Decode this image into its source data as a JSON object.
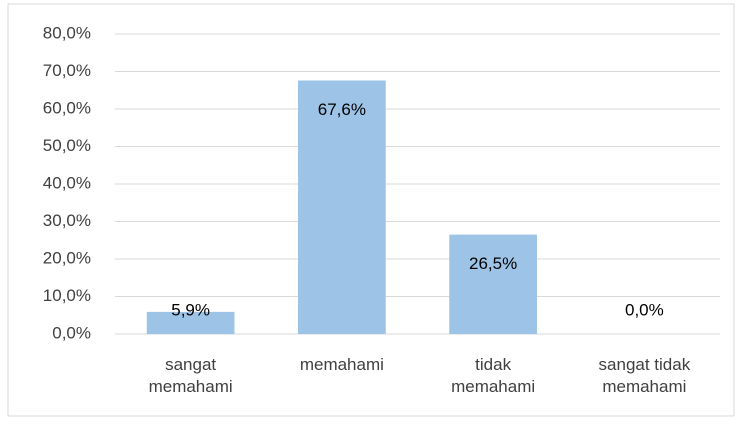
{
  "chart_data": {
    "type": "bar",
    "categories": [
      "sangat memahami",
      "memahami",
      "tidak memahami",
      "sangat tidak memahami"
    ],
    "values": [
      5.9,
      67.6,
      26.5,
      0.0
    ],
    "value_labels": [
      "5,9%",
      "67,6%",
      "26,5%",
      "0,0%"
    ],
    "color": "#9dc3e6",
    "ylim": [
      0,
      80
    ],
    "yticks": [
      {
        "value": 0,
        "label": "0,0%"
      },
      {
        "value": 10,
        "label": "10,0%"
      },
      {
        "value": 20,
        "label": "20,0%"
      },
      {
        "value": 30,
        "label": "30,0%"
      },
      {
        "value": 40,
        "label": "40,0%"
      },
      {
        "value": 50,
        "label": "50,0%"
      },
      {
        "value": 60,
        "label": "60,0%"
      },
      {
        "value": 70,
        "label": "70,0%"
      },
      {
        "value": 80,
        "label": "80,0%"
      }
    ],
    "grid": true
  }
}
